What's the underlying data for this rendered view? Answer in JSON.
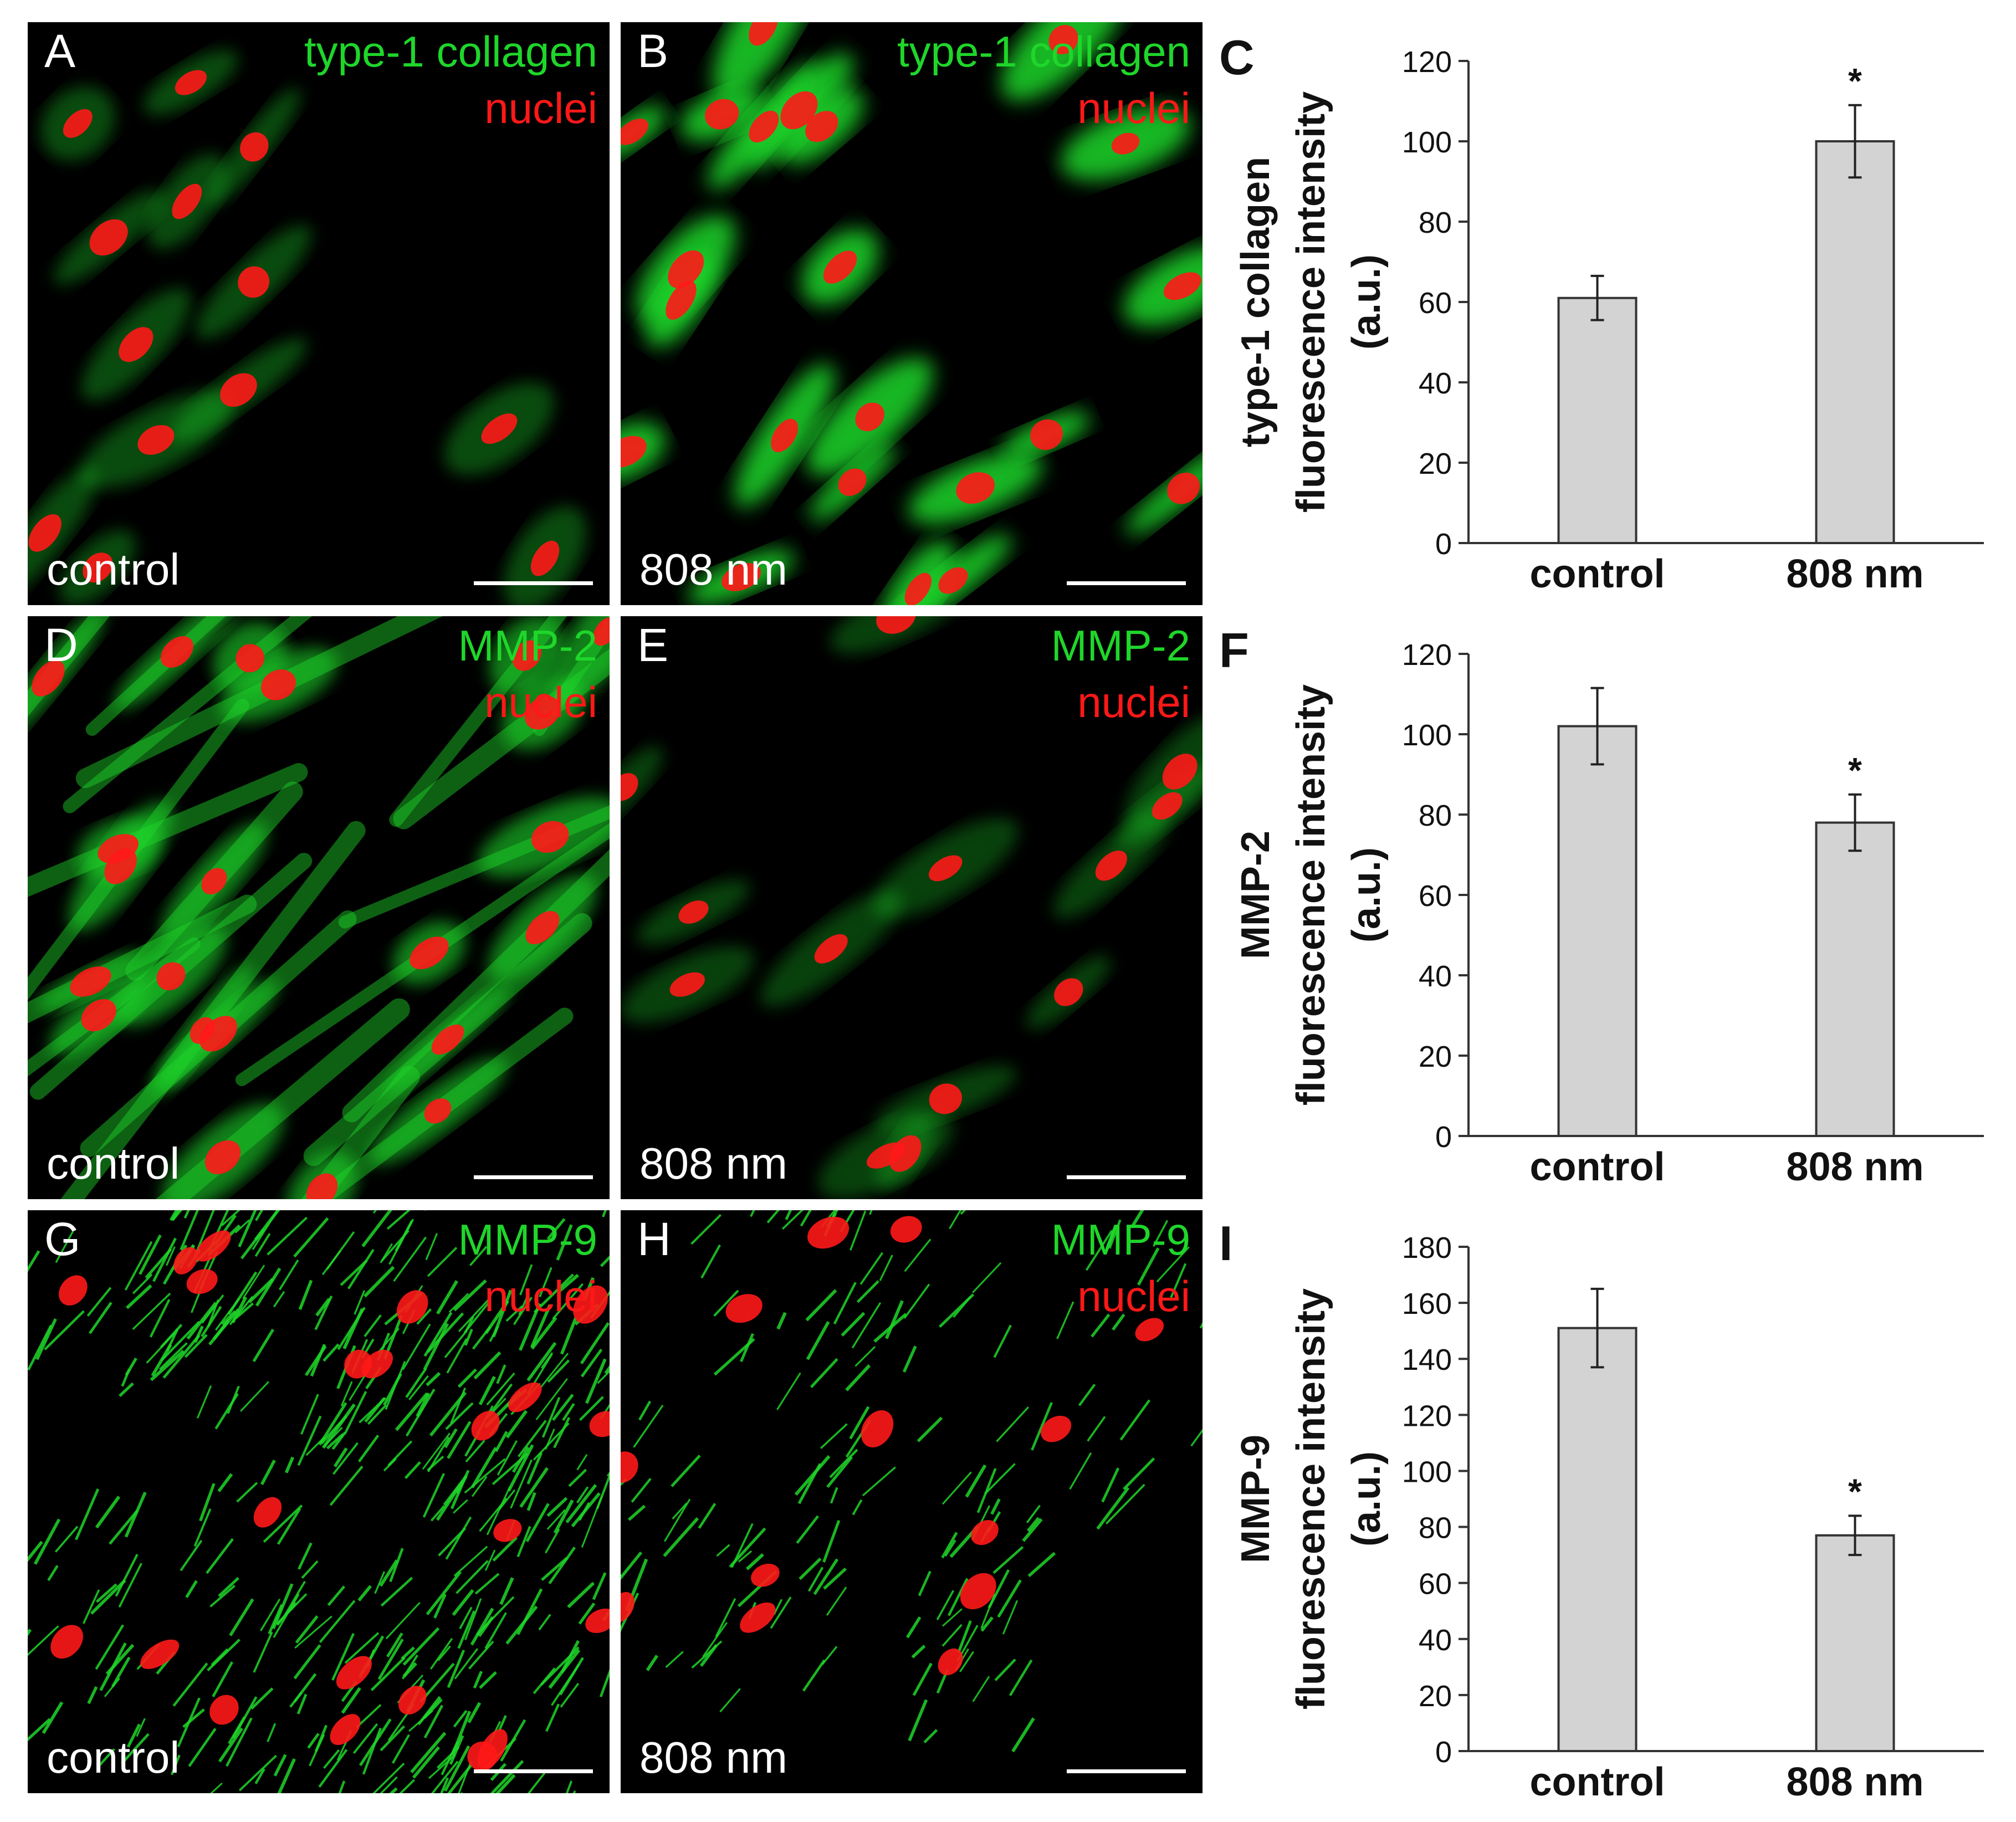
{
  "panels": [
    {
      "letter": "A",
      "stain": "type-1 collagen",
      "nuclei": "nuclei",
      "condition": "control",
      "density": "low",
      "fill": "sparse"
    },
    {
      "letter": "B",
      "stain": "type-1 collagen",
      "nuclei": "nuclei",
      "condition": "808 nm",
      "density": "high",
      "fill": "bright"
    },
    {
      "letter": "D",
      "stain": "MMP-2",
      "nuclei": "nuclei",
      "condition": "control",
      "density": "high",
      "fill": "fibroblast"
    },
    {
      "letter": "E",
      "stain": "MMP-2",
      "nuclei": "nuclei",
      "condition": "808 nm",
      "density": "low",
      "fill": "dim"
    },
    {
      "letter": "G",
      "stain": "MMP-9",
      "nuclei": "nuclei",
      "condition": "control",
      "density": "high",
      "fill": "fibrous"
    },
    {
      "letter": "H",
      "stain": "MMP-9",
      "nuclei": "nuclei",
      "condition": "808 nm",
      "density": "low",
      "fill": "fibrous-sparse"
    }
  ],
  "colors": {
    "bar_fill": "#d3d3d3",
    "bar_stroke": "#333333",
    "green": "#1fd62a",
    "red": "#ff1818"
  },
  "chart_data": [
    {
      "letter": "C",
      "type": "bar",
      "categories": [
        "control",
        "808 nm"
      ],
      "values": [
        61,
        100
      ],
      "errors": [
        5.5,
        9
      ],
      "significance": [
        "",
        "*"
      ],
      "ylabel_lines": [
        "type-1 collagen",
        "fluorescence intensity",
        "(a.u.)"
      ],
      "ylim": [
        0,
        120
      ],
      "ticks": [
        0,
        20,
        40,
        60,
        80,
        100,
        120
      ],
      "grid": false
    },
    {
      "letter": "F",
      "type": "bar",
      "categories": [
        "control",
        "808 nm"
      ],
      "values": [
        102,
        78
      ],
      "errors": [
        9.5,
        7
      ],
      "significance": [
        "",
        "*"
      ],
      "ylabel_lines": [
        "MMP-2",
        "fluorescence intensity",
        "(a.u.)"
      ],
      "ylim": [
        0,
        120
      ],
      "ticks": [
        0,
        20,
        40,
        60,
        80,
        100,
        120
      ],
      "grid": false
    },
    {
      "letter": "I",
      "type": "bar",
      "categories": [
        "control",
        "808 nm"
      ],
      "values": [
        151,
        77
      ],
      "errors": [
        14,
        7
      ],
      "significance": [
        "",
        "*"
      ],
      "ylabel_lines": [
        "MMP-9",
        "fluorescence intensity",
        "(a.u.)"
      ],
      "ylim": [
        0,
        180
      ],
      "ticks": [
        0,
        20,
        40,
        60,
        80,
        100,
        120,
        140,
        160,
        180
      ],
      "grid": false
    }
  ]
}
